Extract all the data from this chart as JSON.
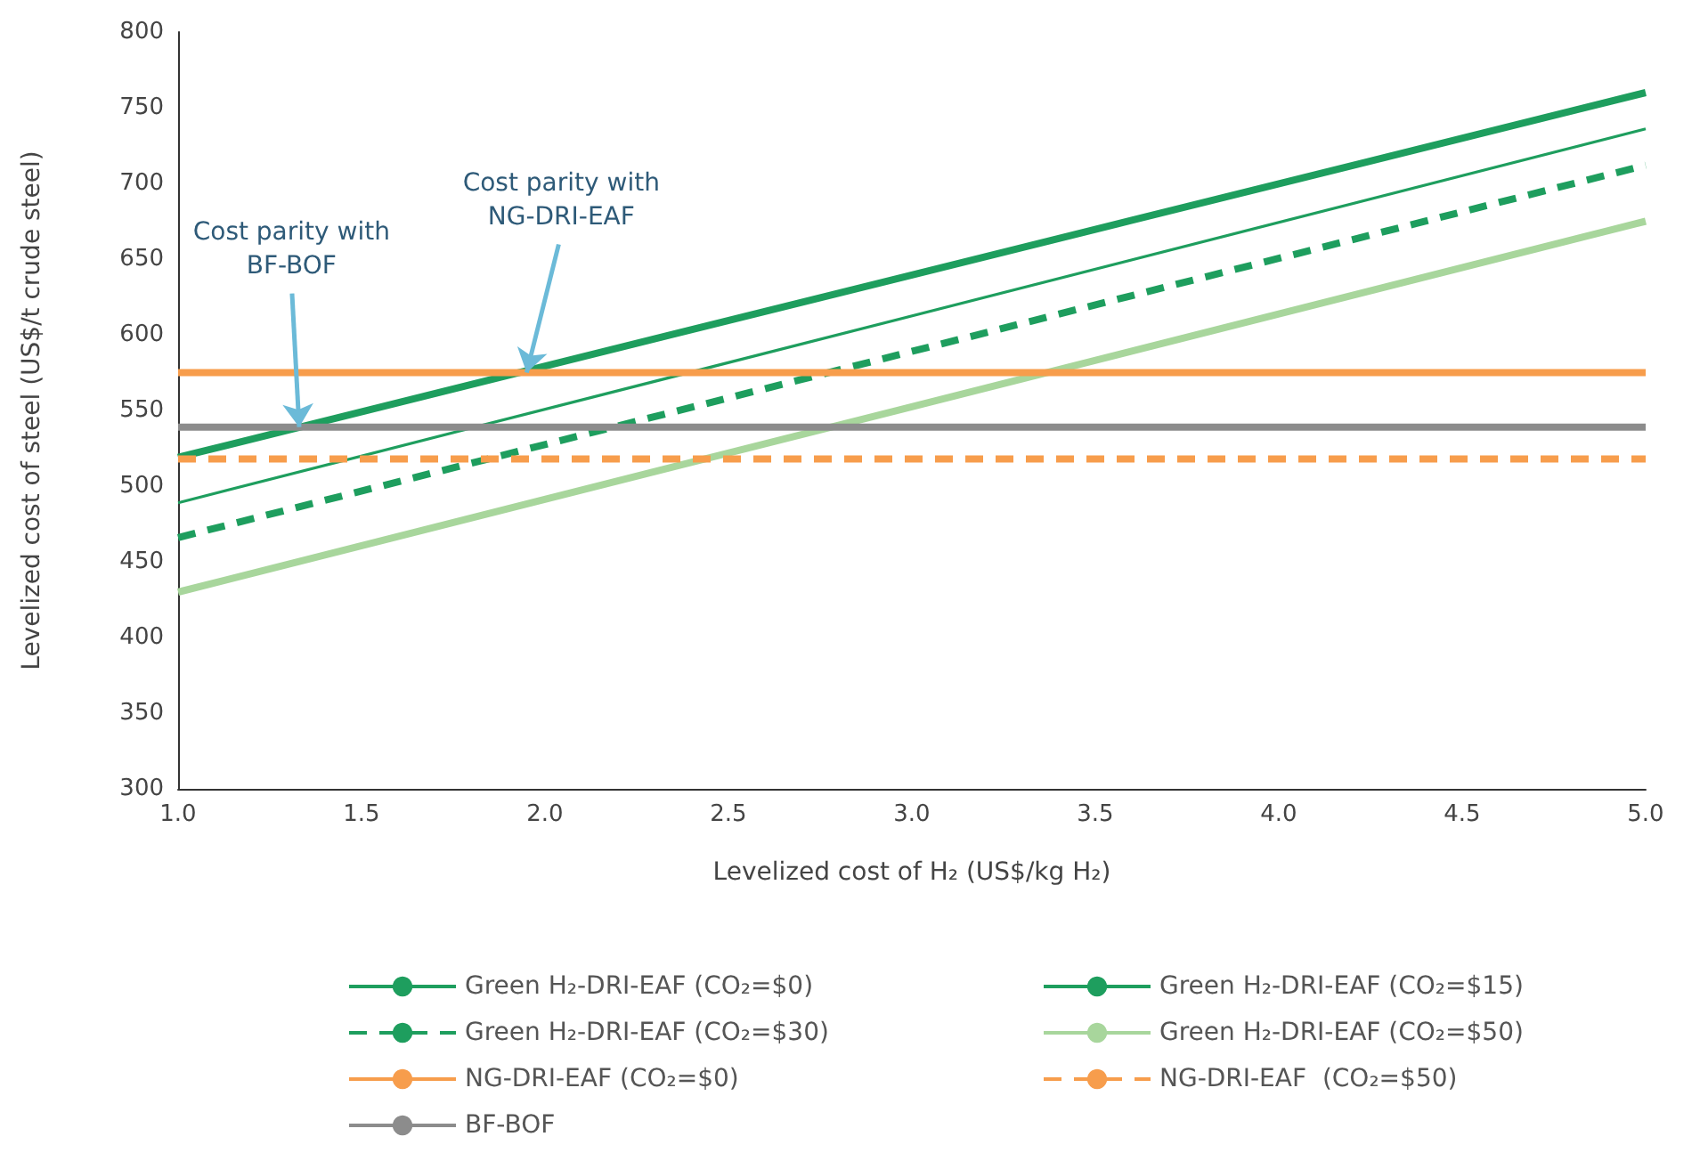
{
  "chart_data": {
    "type": "line",
    "xlabel": "Levelized cost of H₂ (US$/kg H₂)",
    "ylabel": "Levelized cost of steel (US$/t crude steel)",
    "xlim": [
      1,
      5
    ],
    "xticks": [
      {
        "value": 1,
        "label": "1.0"
      },
      1.5,
      {
        "value": 2,
        "label": "2.0"
      },
      2.5,
      {
        "value": 3,
        "label": "3.0"
      },
      3.5,
      {
        "value": 4,
        "label": "4.0"
      },
      4.5,
      {
        "value": 5,
        "label": "5.0"
      }
    ],
    "ylim": [
      300,
      800
    ],
    "yticks": [
      300,
      350,
      400,
      450,
      500,
      550,
      600,
      650,
      700,
      750,
      800
    ],
    "grid": false,
    "legend": "bottom",
    "marker": "none",
    "x": [
      1,
      5
    ],
    "series": [
      {
        "name": "Green H₂-DRI-EAF (CO₂=$0)",
        "color": "#1e9e5e",
        "values": [
          519,
          760
        ],
        "line_style": "solid"
      },
      {
        "name": "Green H₂-DRI-EAF (CO₂=$15)",
        "color": "#1e9e5e",
        "values": [
          489,
          736
        ],
        "line_style": "solid"
      },
      {
        "name": "Green H₂-DRI-EAF (CO₂=$30)",
        "color": "#1e9e5e",
        "values": [
          466,
          712
        ],
        "line_style": "dashed"
      },
      {
        "name": "Green H₂-DRI-EAF (CO₂=$50)",
        "color": "#a8d69c",
        "values": [
          430,
          675
        ],
        "line_style": "solid"
      },
      {
        "name": "NG-DRI-EAF (CO₂=$0)",
        "color": "#f79d4c",
        "values": [
          575,
          575
        ],
        "line_style": "solid"
      },
      {
        "name": "NG-DRI-EAF  (CO₂=$50)",
        "color": "#f79d4c",
        "values": [
          518,
          518
        ],
        "line_style": "dashed"
      },
      {
        "name": "BF-BOF",
        "color": "#8c8c8c",
        "values": [
          539,
          539
        ],
        "line_style": "solid"
      }
    ],
    "annotations": [
      {
        "text": "Cost parity with\nBF-BOF",
        "x": 1.33,
        "y": 539
      },
      {
        "text": "Cost parity with\nNG-DRI-EAF",
        "x": 1.95,
        "y": 575
      }
    ]
  }
}
